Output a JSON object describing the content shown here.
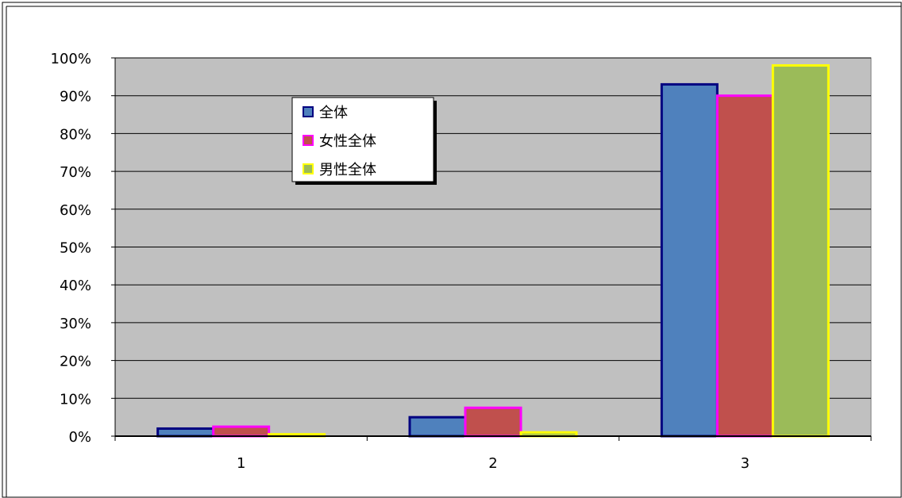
{
  "chart_data": {
    "type": "bar",
    "categories": [
      "1",
      "2",
      "3"
    ],
    "series": [
      {
        "name": "全体",
        "values": [
          2,
          5,
          93
        ],
        "fill": "#4f81bd",
        "stroke": "#000080"
      },
      {
        "name": "女性全体",
        "values": [
          2.5,
          7.5,
          90
        ],
        "fill": "#c0504d",
        "stroke": "#ff00ff"
      },
      {
        "name": "男性全体",
        "values": [
          0.5,
          1,
          98
        ],
        "fill": "#9bbb59",
        "stroke": "#ffff00"
      }
    ],
    "ylim": [
      0,
      100
    ],
    "y_ticks": [
      "0%",
      "10%",
      "20%",
      "30%",
      "40%",
      "50%",
      "60%",
      "70%",
      "80%",
      "90%",
      "100%"
    ],
    "grid": true,
    "plot_background": "#c0c0c0",
    "legend_position": "top-left inside plot"
  }
}
